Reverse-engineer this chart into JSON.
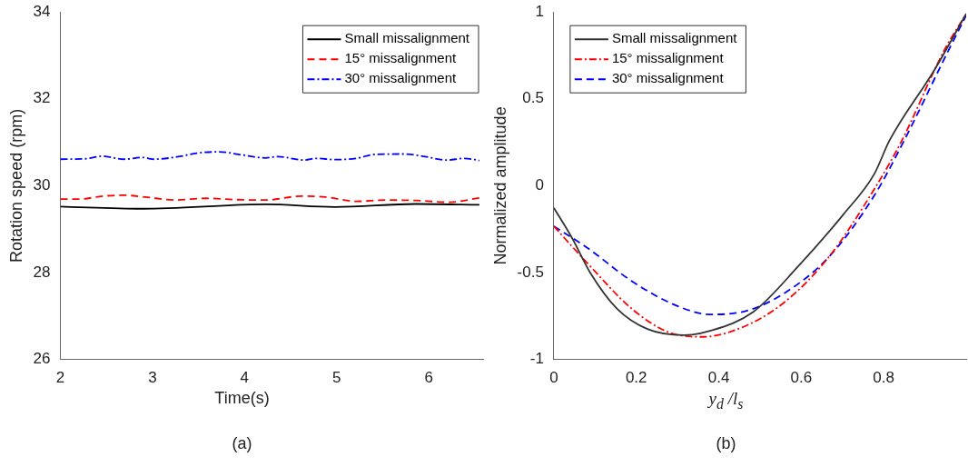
{
  "chart_data": [
    {
      "type": "line",
      "xlabel": "Time(s)",
      "ylabel": "Rotation speed (rpm)",
      "xlim": [
        2,
        6.6
      ],
      "xticks": [
        2,
        3,
        4,
        5,
        6
      ],
      "ylim": [
        26,
        34
      ],
      "yticks": [
        26,
        28,
        30,
        32,
        34
      ],
      "legend": "top right",
      "marker": "none",
      "annotations": [
        "(a)"
      ],
      "series": [
        {
          "name": "Small missalignment",
          "color": "#000000",
          "line_style": "solid",
          "x": [
            2,
            2.89,
            4.23,
            4.98,
            5.86,
            6.55
          ],
          "values": [
            29.52,
            29.47,
            29.57,
            29.51,
            29.58,
            29.56
          ]
        },
        {
          "name": "15° missalignment",
          "color": "#ff0000",
          "line_style": "dashed",
          "x": [
            2,
            2.2,
            2.46,
            2.69,
            2.92,
            3.25,
            3.58,
            3.9,
            4.23,
            4.62,
            4.88,
            5.21,
            5.54,
            5.86,
            6.22,
            6.55
          ],
          "values": [
            29.69,
            29.69,
            29.76,
            29.78,
            29.74,
            29.67,
            29.71,
            29.68,
            29.67,
            29.76,
            29.74,
            29.64,
            29.67,
            29.66,
            29.62,
            29.72
          ]
        },
        {
          "name": "30° missalignment",
          "color": "#0000ff",
          "line_style": "dashdot",
          "x": [
            2,
            2.27,
            2.45,
            2.69,
            2.89,
            3.02,
            3.31,
            3.48,
            3.72,
            3.97,
            4.23,
            4.36,
            4.65,
            4.78,
            4.98,
            5.21,
            5.41,
            5.73,
            5.96,
            6.19,
            6.39,
            6.55
          ],
          "values": [
            30.61,
            30.62,
            30.68,
            30.61,
            30.65,
            30.61,
            30.68,
            30.75,
            30.78,
            30.71,
            30.64,
            30.67,
            30.59,
            30.63,
            30.6,
            30.63,
            30.72,
            30.73,
            30.67,
            30.59,
            30.63,
            30.58
          ]
        }
      ]
    },
    {
      "type": "line",
      "xlabel": "y$_{d}$ /l$_{s}$",
      "ylabel": "Normalized amplitude",
      "xlim": [
        0,
        1
      ],
      "xticks": [
        0,
        0.2,
        0.4,
        0.6,
        0.8
      ],
      "ylim": [
        -1,
        1
      ],
      "yticks": [
        -1,
        -0.5,
        0,
        0.5,
        1
      ],
      "legend": "top left",
      "marker": "none",
      "annotations": [
        "(b)"
      ],
      "series": [
        {
          "name": "Small missalignment",
          "color": "#333333",
          "line_style": "solid",
          "x": [
            0,
            0.044,
            0.088,
            0.154,
            0.227,
            0.315,
            0.381,
            0.483,
            0.593,
            0.703,
            0.777,
            0.814,
            0.924,
            1
          ],
          "values": [
            -0.127,
            -0.3,
            -0.5,
            -0.71,
            -0.825,
            -0.86,
            -0.834,
            -0.728,
            -0.463,
            -0.163,
            0.067,
            0.26,
            0.67,
            0.99
          ]
        },
        {
          "name": "15° missalignment",
          "color": "#ff0000",
          "line_style": "dashdot",
          "x": [
            0,
            0.088,
            0.19,
            0.278,
            0.359,
            0.447,
            0.557,
            0.667,
            0.777,
            0.844,
            0.946,
            1
          ],
          "values": [
            -0.233,
            -0.463,
            -0.71,
            -0.843,
            -0.87,
            -0.825,
            -0.675,
            -0.41,
            -0.02,
            0.26,
            0.776,
            0.99
          ]
        },
        {
          "name": "30° missalignment",
          "color": "#0000ff",
          "line_style": "dashed",
          "x": [
            0,
            0.081,
            0.19,
            0.3,
            0.381,
            0.469,
            0.557,
            0.667,
            0.777,
            0.85,
            0.953,
            1
          ],
          "values": [
            -0.233,
            -0.357,
            -0.551,
            -0.693,
            -0.741,
            -0.719,
            -0.622,
            -0.41,
            -0.057,
            0.262,
            0.76,
            0.98
          ]
        }
      ]
    }
  ]
}
